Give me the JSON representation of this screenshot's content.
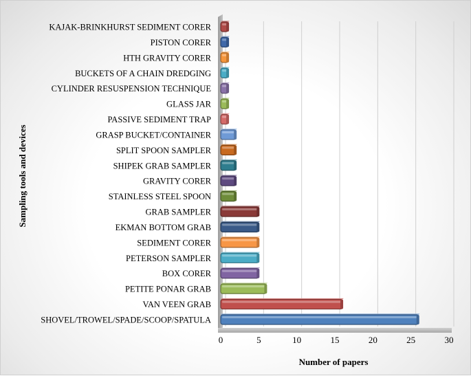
{
  "chart_data": {
    "type": "bar",
    "orientation": "horizontal",
    "categories": [
      "KAJAK-BRINKHURST SEDIMENT CORER",
      "PISTON CORER",
      "HTH GRAVITY CORER",
      "BUCKETS OF A CHAIN DREDGING",
      "CYLINDER RESUSPENSION TECHNIQUE",
      "GLASS JAR",
      "PASSIVE SEDIMENT TRAP",
      "GRASP BUCKET/CONTAINER",
      "SPLIT SPOON SAMPLER",
      "SHIPEK GRAB SAMPLER",
      "GRAVITY CORER",
      "STAINLESS STEEL SPOON",
      "GRAB SAMPLER",
      "EKMAN BOTTOM GRAB",
      "SEDIMENT CORER",
      "PETERSON SAMPLER",
      "BOX CORER",
      "PETITE PONAR GRAB",
      "VAN VEEN GRAB",
      "SHOVEL/TROWEL/SPADE/SCOOP/SPATULA"
    ],
    "values": [
      1,
      1,
      1,
      1,
      1,
      1,
      1,
      2,
      2,
      2,
      2,
      2,
      5,
      5,
      5,
      5,
      5,
      6,
      16,
      26
    ],
    "colors": [
      "#b04a48",
      "#3f68a8",
      "#f5963c",
      "#4aacc6",
      "#8a72a8",
      "#9bbb59",
      "#d46a68",
      "#6f9ad6",
      "#c86a20",
      "#2f7d8e",
      "#5e4a80",
      "#6e8c3a",
      "#8a3a38",
      "#3a5a88",
      "#f79646",
      "#4bacc6",
      "#8064a2",
      "#9bbb59",
      "#c0504d",
      "#4f81bd"
    ],
    "xlabel": "Number of papers",
    "ylabel": "Sampling tools and devices",
    "xlim": [
      0,
      30
    ],
    "xticks": [
      0,
      5,
      10,
      15,
      20,
      25,
      30
    ],
    "grid": "vertical",
    "legend": "none"
  }
}
